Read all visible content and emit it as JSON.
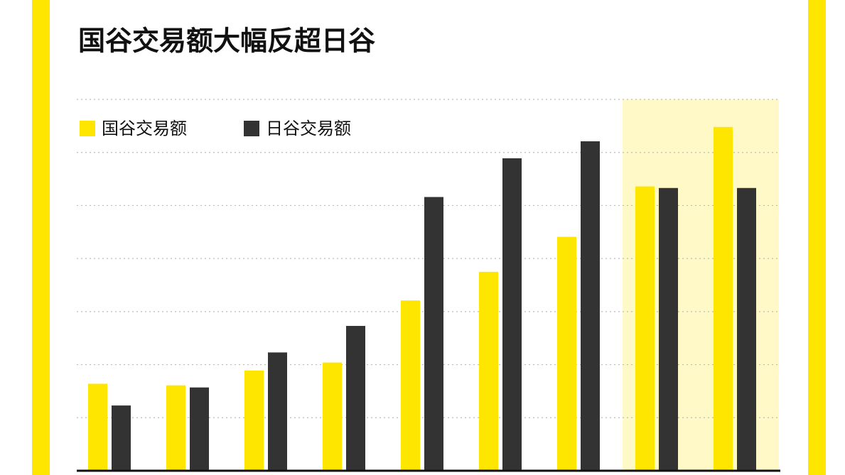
{
  "chart_data": {
    "type": "bar",
    "title": "国谷交易额大幅反超日谷",
    "categories": [
      null,
      null,
      null,
      null,
      null,
      null,
      null,
      null,
      null
    ],
    "series": [
      {
        "name": "国谷交易额",
        "color": "#ffe600",
        "values": [
          1.64,
          1.61,
          1.89,
          2.04,
          3.21,
          3.75,
          4.41,
          5.36,
          6.48
        ]
      },
      {
        "name": "日谷交易额",
        "color": "#333333",
        "values": [
          1.23,
          1.57,
          2.23,
          2.73,
          5.16,
          5.89,
          6.21,
          5.33,
          5.33
        ]
      }
    ],
    "ylim": [
      0,
      7
    ],
    "yticks": [
      0,
      1,
      2,
      3,
      4,
      5,
      6,
      7
    ],
    "grid": true,
    "highlight_categories": [
      7,
      8
    ],
    "highlight_color": "#fff9c8"
  }
}
